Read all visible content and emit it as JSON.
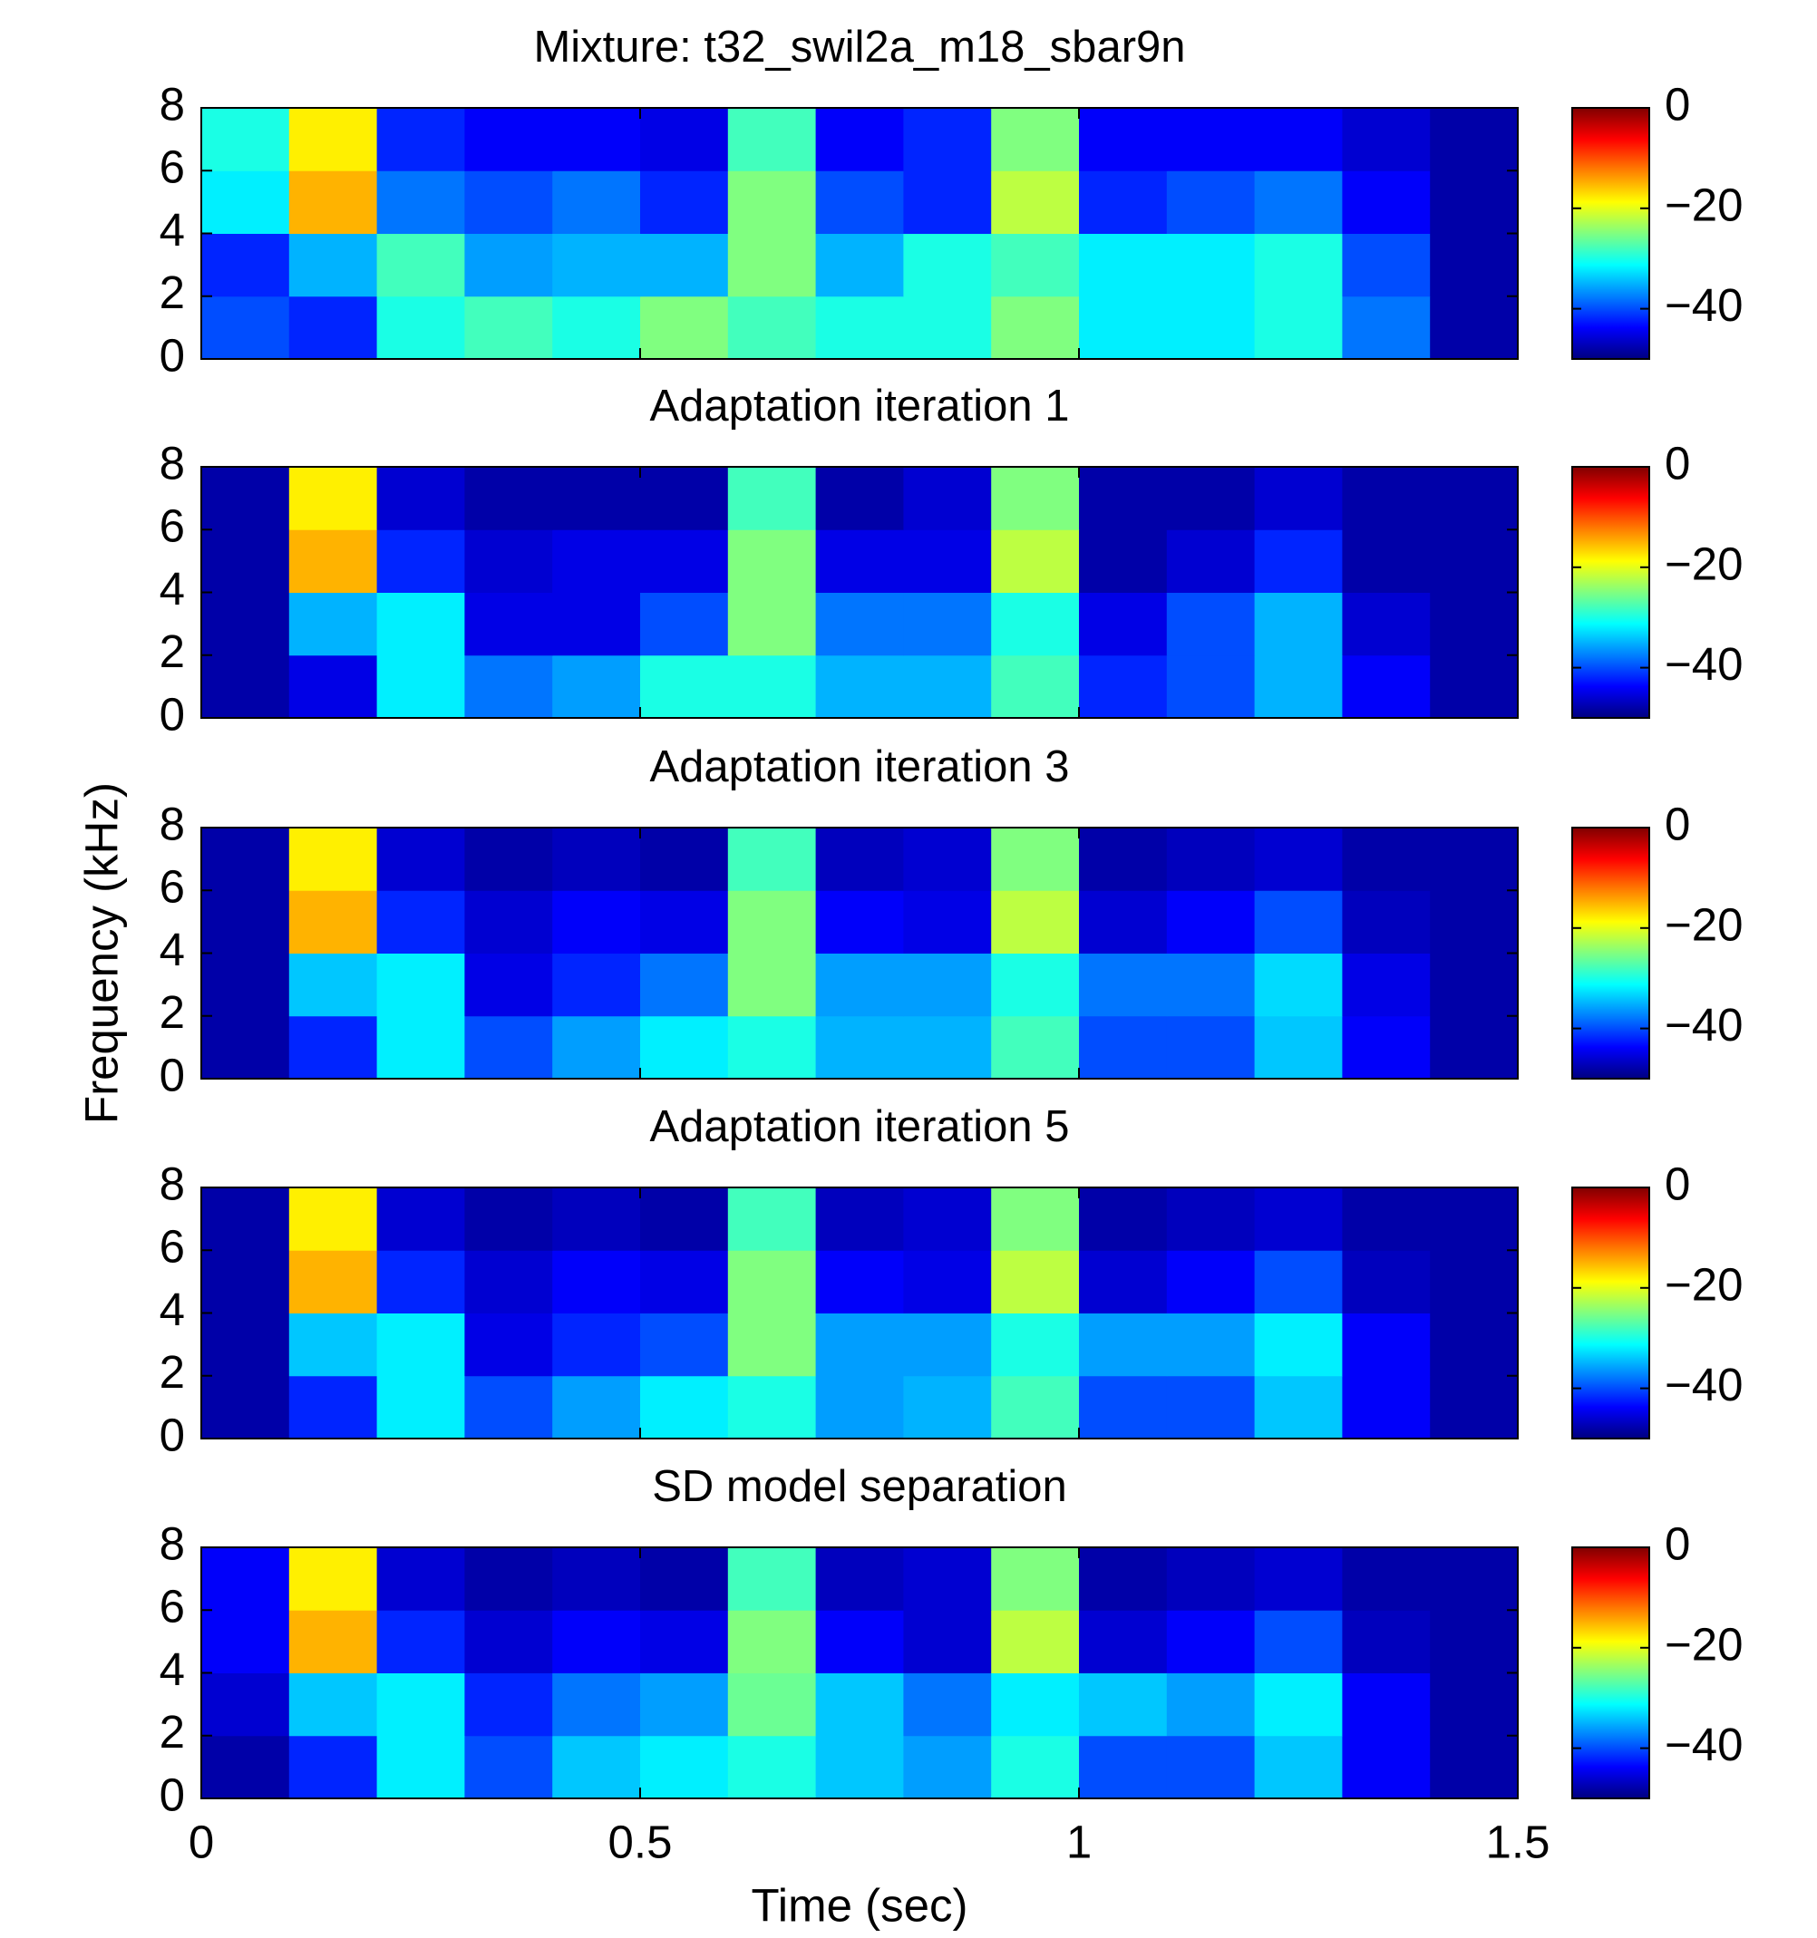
{
  "chart_data": [
    {
      "type": "heatmap",
      "title": "Mixture: t32_swil2a_m18_sbar9n",
      "xbins": [
        0,
        0.1,
        0.2,
        0.3,
        0.4,
        0.5,
        0.6,
        0.7,
        0.8,
        0.9,
        1,
        1.1,
        1.2,
        1.3,
        1.4,
        1.5
      ],
      "ybins": [
        0,
        2,
        4,
        6,
        8
      ],
      "values": [
        [
          -40,
          -42,
          -30,
          -28,
          -30,
          -25,
          -28,
          -30,
          -30,
          -25,
          -32,
          -32,
          -30,
          -38,
          -48
        ],
        [
          -42,
          -35,
          -28,
          -36,
          -35,
          -35,
          -25,
          -35,
          -30,
          -28,
          -32,
          -32,
          -30,
          -40,
          -48
        ],
        [
          -32,
          -15,
          -38,
          -40,
          -38,
          -42,
          -25,
          -40,
          -42,
          -22,
          -42,
          -40,
          -38,
          -44,
          -48
        ],
        [
          -30,
          -18,
          -42,
          -44,
          -44,
          -45,
          -28,
          -44,
          -42,
          -25,
          -44,
          -44,
          -44,
          -46,
          -48
        ]
      ],
      "xlim": [
        0,
        1.5
      ],
      "xticks": [
        0,
        0.5,
        1,
        1.5
      ],
      "ylim": [
        0,
        8
      ],
      "yticks": [
        0,
        2,
        4,
        6,
        8
      ],
      "clim": [
        -50,
        0
      ],
      "cticks": [
        0,
        {
          "value": -20,
          "label": "−20"
        },
        {
          "value": -40,
          "label": "−40"
        }
      ],
      "colormap": "jet"
    },
    {
      "type": "heatmap",
      "title": "Adaptation iteration 1",
      "xbins": [
        0,
        0.1,
        0.2,
        0.3,
        0.4,
        0.5,
        0.6,
        0.7,
        0.8,
        0.9,
        1,
        1.1,
        1.2,
        1.3,
        1.4,
        1.5
      ],
      "ybins": [
        0,
        2,
        4,
        6,
        8
      ],
      "values": [
        [
          -48,
          -45,
          -32,
          -38,
          -36,
          -30,
          -30,
          -35,
          -35,
          -28,
          -42,
          -40,
          -35,
          -44,
          -48
        ],
        [
          -48,
          -35,
          -32,
          -45,
          -45,
          -40,
          -25,
          -38,
          -38,
          -30,
          -45,
          -40,
          -35,
          -46,
          -48
        ],
        [
          -48,
          -15,
          -42,
          -46,
          -45,
          -45,
          -25,
          -45,
          -45,
          -22,
          -48,
          -46,
          -42,
          -48,
          -48
        ],
        [
          -48,
          -18,
          -46,
          -48,
          -48,
          -48,
          -28,
          -48,
          -46,
          -25,
          -48,
          -48,
          -46,
          -48,
          -48
        ]
      ],
      "xlim": [
        0,
        1.5
      ],
      "xticks": [
        0,
        0.5,
        1,
        1.5
      ],
      "ylim": [
        0,
        8
      ],
      "yticks": [
        0,
        2,
        4,
        6,
        8
      ],
      "clim": [
        -50,
        0
      ],
      "cticks": [
        0,
        {
          "value": -20,
          "label": "−20"
        },
        {
          "value": -40,
          "label": "−40"
        }
      ],
      "colormap": "jet"
    },
    {
      "type": "heatmap",
      "title": "Adaptation iteration 3",
      "ylabel": "Frequency (kHz)",
      "xbins": [
        0,
        0.1,
        0.2,
        0.3,
        0.4,
        0.5,
        0.6,
        0.7,
        0.8,
        0.9,
        1,
        1.1,
        1.2,
        1.3,
        1.4,
        1.5
      ],
      "ybins": [
        0,
        2,
        4,
        6,
        8
      ],
      "values": [
        [
          -48,
          -42,
          -32,
          -40,
          -36,
          -32,
          -30,
          -35,
          -35,
          -28,
          -40,
          -40,
          -34,
          -44,
          -48
        ],
        [
          -48,
          -34,
          -32,
          -45,
          -42,
          -38,
          -25,
          -36,
          -36,
          -30,
          -38,
          -38,
          -33,
          -45,
          -48
        ],
        [
          -48,
          -15,
          -42,
          -46,
          -44,
          -45,
          -25,
          -44,
          -45,
          -22,
          -46,
          -44,
          -40,
          -47,
          -48
        ],
        [
          -48,
          -18,
          -46,
          -48,
          -47,
          -48,
          -28,
          -47,
          -46,
          -25,
          -48,
          -47,
          -46,
          -48,
          -48
        ]
      ],
      "xlim": [
        0,
        1.5
      ],
      "xticks": [
        0,
        0.5,
        1,
        1.5
      ],
      "ylim": [
        0,
        8
      ],
      "yticks": [
        0,
        2,
        4,
        6,
        8
      ],
      "clim": [
        -50,
        0
      ],
      "cticks": [
        0,
        {
          "value": -20,
          "label": "−20"
        },
        {
          "value": -40,
          "label": "−40"
        }
      ],
      "colormap": "jet"
    },
    {
      "type": "heatmap",
      "title": "Adaptation iteration 5",
      "xbins": [
        0,
        0.1,
        0.2,
        0.3,
        0.4,
        0.5,
        0.6,
        0.7,
        0.8,
        0.9,
        1,
        1.1,
        1.2,
        1.3,
        1.4,
        1.5
      ],
      "ybins": [
        0,
        2,
        4,
        6,
        8
      ],
      "values": [
        [
          -48,
          -42,
          -32,
          -40,
          -36,
          -32,
          -30,
          -36,
          -35,
          -28,
          -40,
          -40,
          -34,
          -44,
          -48
        ],
        [
          -48,
          -34,
          -32,
          -45,
          -42,
          -40,
          -25,
          -36,
          -36,
          -30,
          -36,
          -36,
          -32,
          -44,
          -48
        ],
        [
          -48,
          -15,
          -42,
          -46,
          -44,
          -45,
          -25,
          -44,
          -45,
          -22,
          -46,
          -44,
          -40,
          -47,
          -48
        ],
        [
          -48,
          -18,
          -46,
          -48,
          -47,
          -48,
          -28,
          -47,
          -46,
          -25,
          -48,
          -47,
          -46,
          -48,
          -48
        ]
      ],
      "xlim": [
        0,
        1.5
      ],
      "xticks": [
        0,
        0.5,
        1,
        1.5
      ],
      "ylim": [
        0,
        8
      ],
      "yticks": [
        0,
        2,
        4,
        6,
        8
      ],
      "clim": [
        -50,
        0
      ],
      "cticks": [
        0,
        {
          "value": -20,
          "label": "−20"
        },
        {
          "value": -40,
          "label": "−40"
        }
      ],
      "colormap": "jet"
    },
    {
      "type": "heatmap",
      "title": "SD model separation",
      "xlabel": "Time (sec)",
      "xbins": [
        0,
        0.1,
        0.2,
        0.3,
        0.4,
        0.5,
        0.6,
        0.7,
        0.8,
        0.9,
        1,
        1.1,
        1.2,
        1.3,
        1.4,
        1.5
      ],
      "ybins": [
        0,
        2,
        4,
        6,
        8
      ],
      "values": [
        [
          -48,
          -42,
          -32,
          -40,
          -34,
          -32,
          -30,
          -34,
          -36,
          -30,
          -40,
          -40,
          -34,
          -44,
          -48
        ],
        [
          -46,
          -34,
          -32,
          -42,
          -38,
          -36,
          -26,
          -34,
          -38,
          -32,
          -34,
          -36,
          -32,
          -44,
          -48
        ],
        [
          -44,
          -15,
          -42,
          -46,
          -44,
          -45,
          -25,
          -44,
          -46,
          -22,
          -46,
          -44,
          -40,
          -47,
          -48
        ],
        [
          -44,
          -18,
          -46,
          -48,
          -47,
          -48,
          -28,
          -47,
          -46,
          -25,
          -48,
          -47,
          -46,
          -48,
          -48
        ]
      ],
      "xlim": [
        0,
        1.5
      ],
      "xticks": [
        0,
        0.5,
        1,
        1.5
      ],
      "ylim": [
        0,
        8
      ],
      "yticks": [
        0,
        2,
        4,
        6,
        8
      ],
      "clim": [
        -50,
        0
      ],
      "cticks": [
        0,
        {
          "value": -20,
          "label": "−20"
        },
        {
          "value": -40,
          "label": "−40"
        }
      ],
      "colormap": "jet"
    }
  ]
}
